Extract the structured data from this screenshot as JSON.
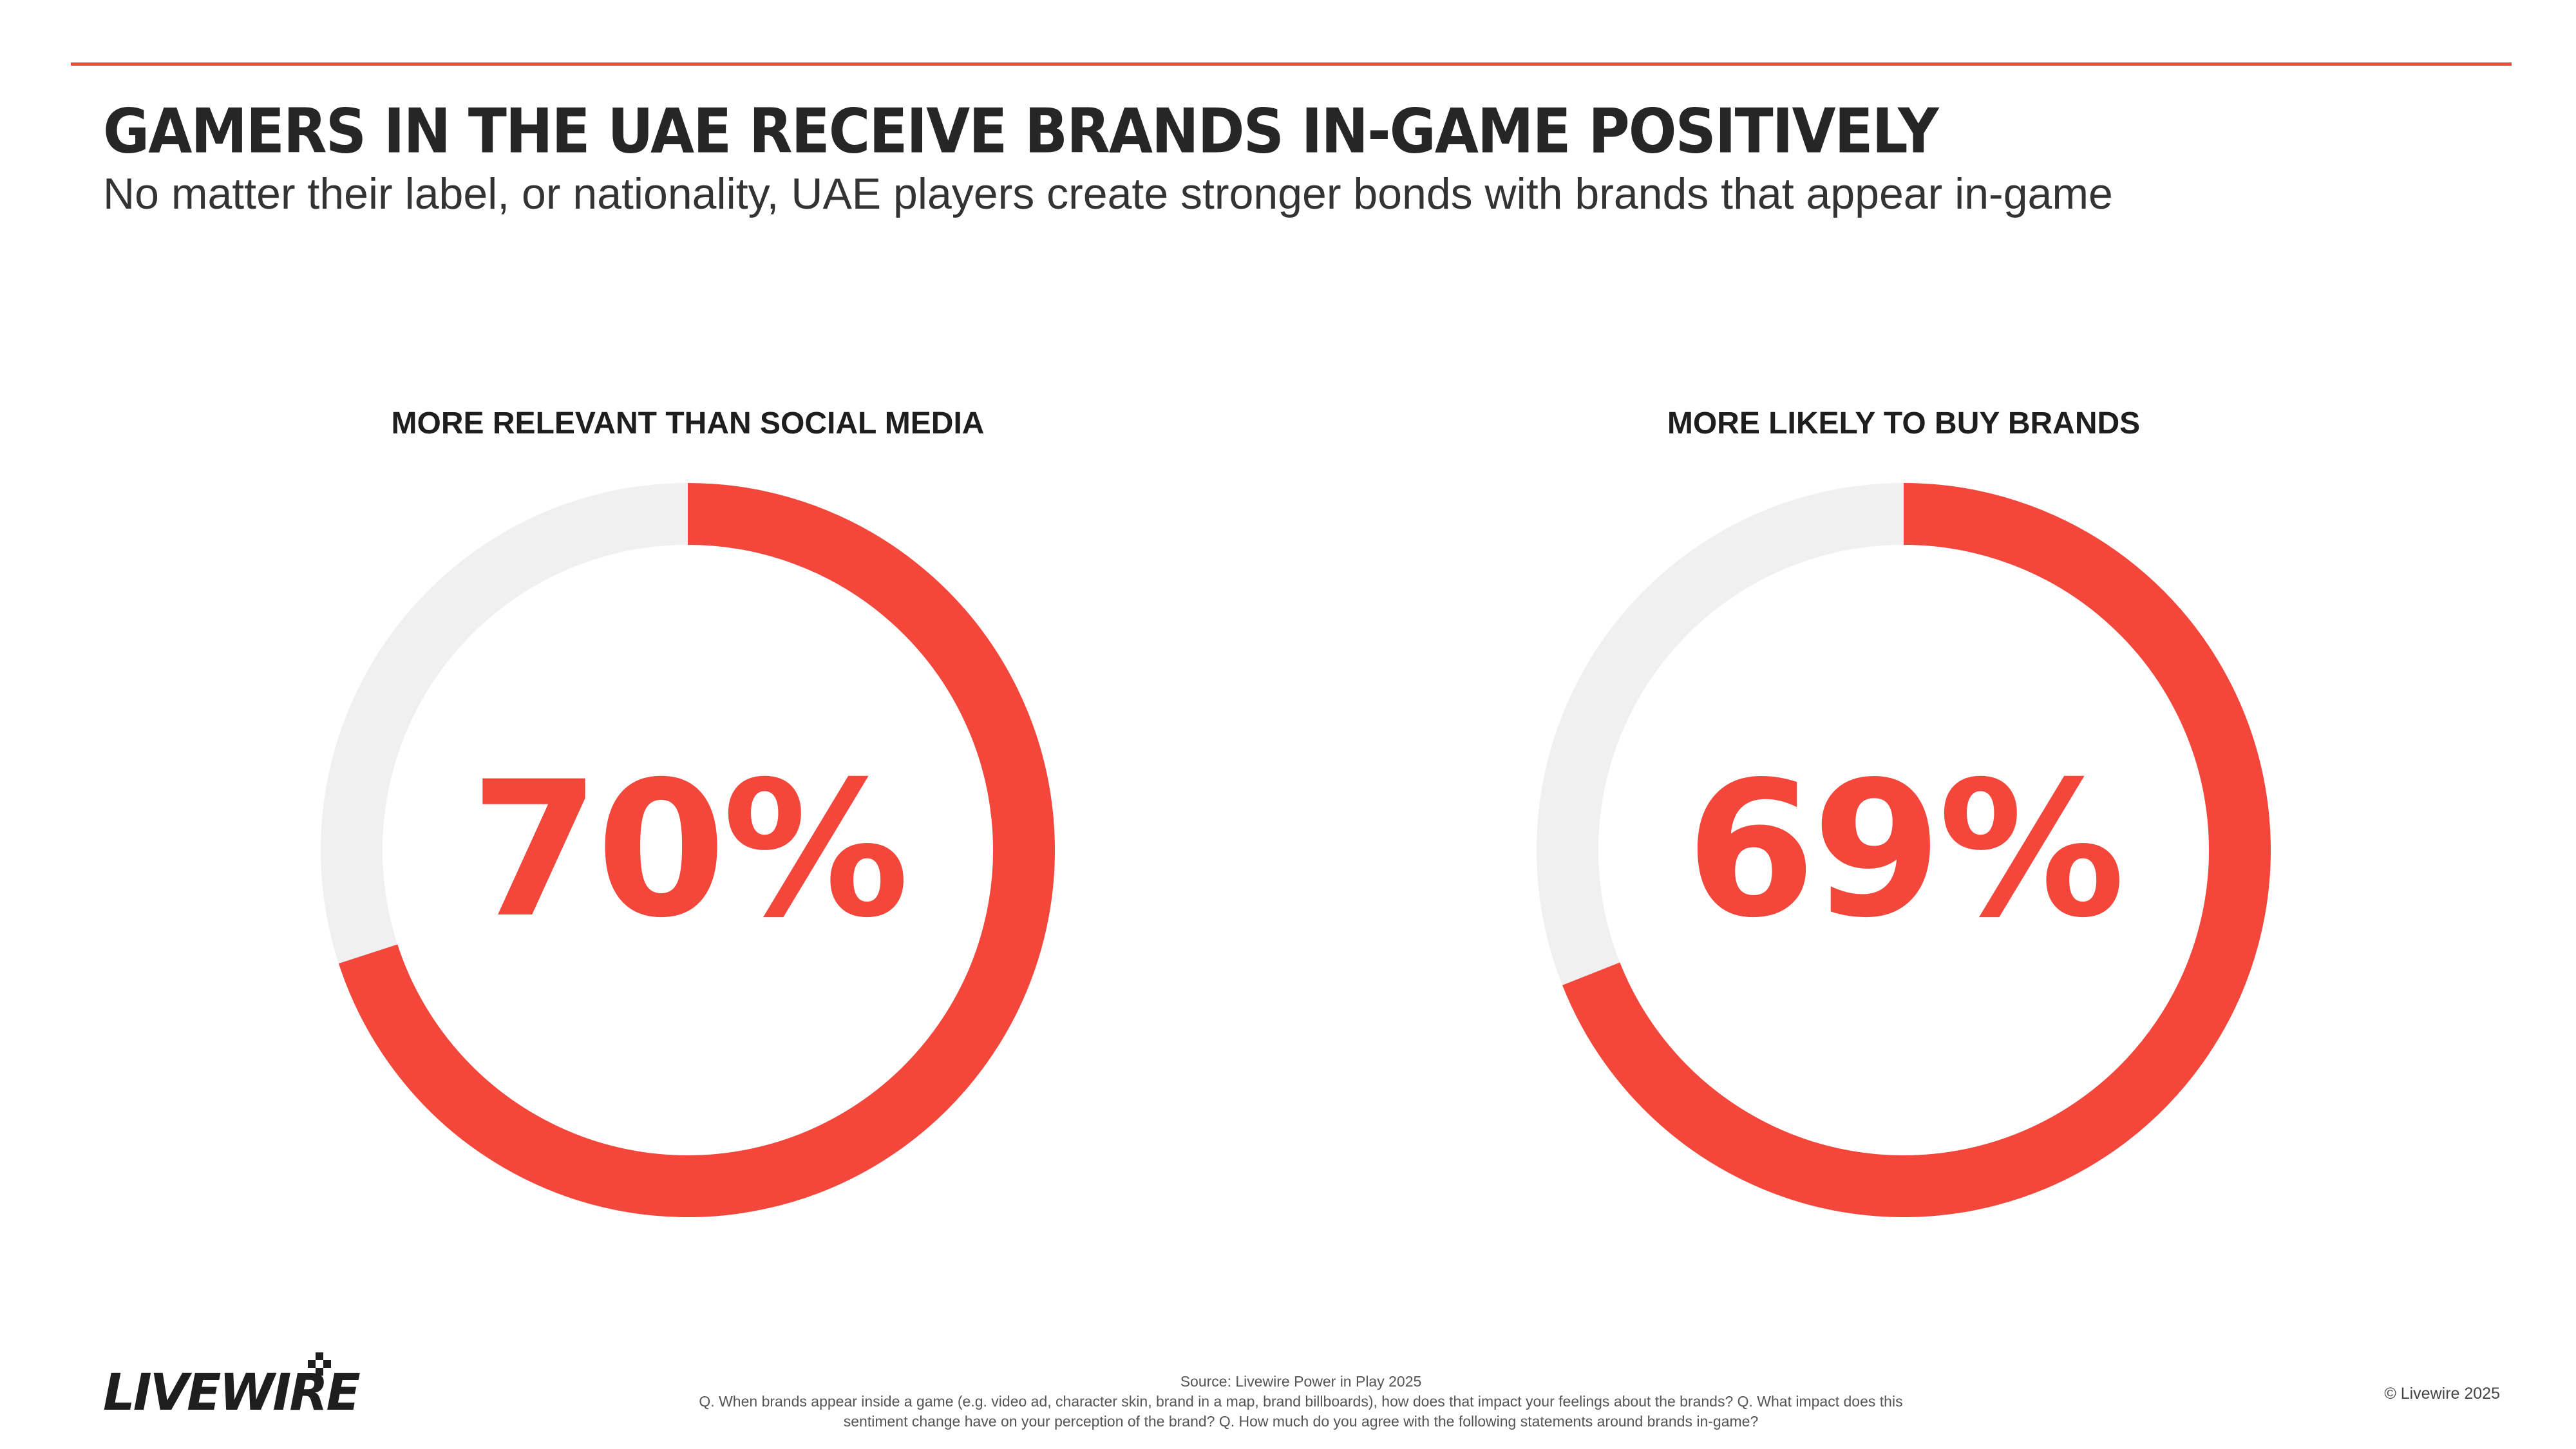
{
  "header": {
    "title": "GAMERS IN THE UAE RECEIVE BRANDS IN-GAME POSITIVELY",
    "subtitle": "No matter their label, or nationality, UAE players create stronger bonds with brands that appear in-game"
  },
  "colors": {
    "accent": "#f4473c",
    "track": "#f0f0f0",
    "rule": "#f04a3e"
  },
  "chart_data": [
    {
      "type": "pie",
      "variant": "donut",
      "title": "MORE RELEVANT THAN SOCIAL MEDIA",
      "value": 70,
      "value_label": "70%",
      "unit": "%"
    },
    {
      "type": "pie",
      "variant": "donut",
      "title": "MORE LIKELY TO BUY BRANDS",
      "value": 69,
      "value_label": "69%",
      "unit": "%"
    }
  ],
  "footer": {
    "logo_text": "LIVEWIRE",
    "source": "Source: Livewire Power in Play 2025",
    "question": "Q. When brands appear inside a game (e.g. video ad, character skin, brand in a map, brand billboards), how does that impact your feelings about the brands? Q. What impact does this sentiment change have on your perception of the brand? Q. How much do you agree with the following statements around brands in-game?",
    "copyright": "© Livewire 2025"
  }
}
